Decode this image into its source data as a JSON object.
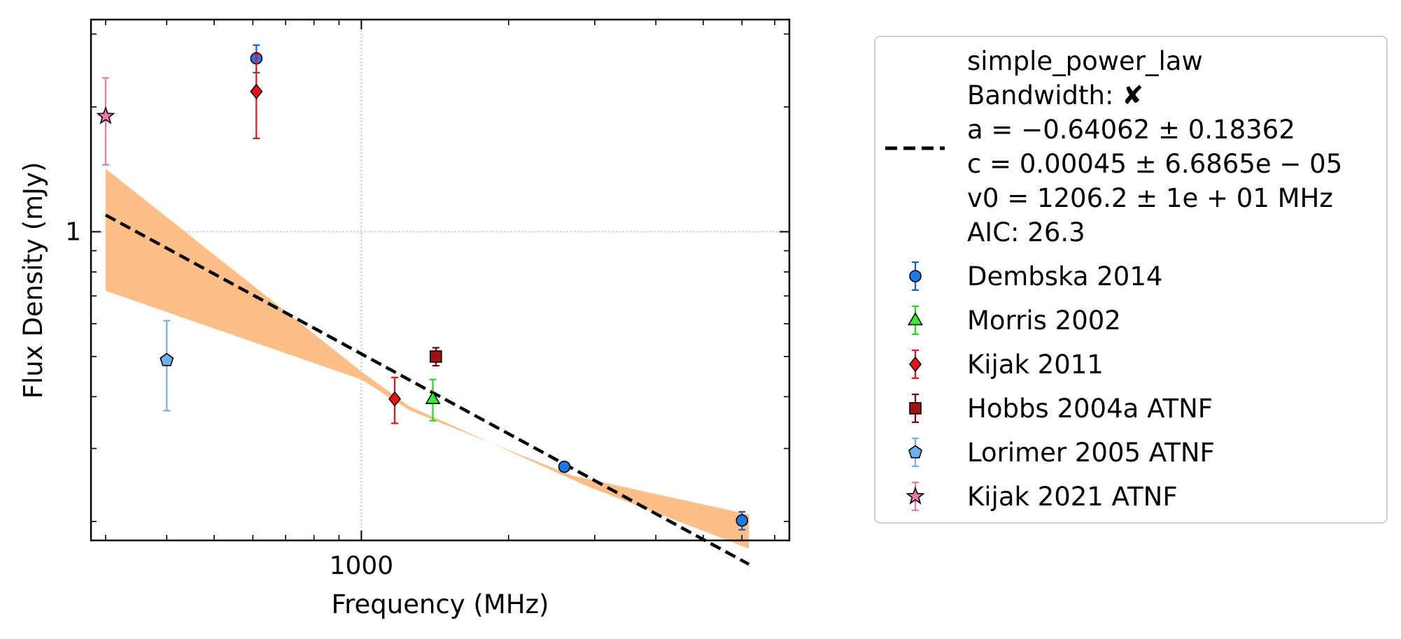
{
  "chart_data": {
    "type": "scatter",
    "xlabel": "Frequency (MHz)",
    "ylabel": "Flux Density (mJy)",
    "x_scale": "log",
    "y_scale": "log",
    "xlim": [
      280,
      7500
    ],
    "ylim": [
      0.18,
      3.25
    ],
    "x_ticks": [
      {
        "value": 1000,
        "label": "1000"
      }
    ],
    "y_ticks": [
      {
        "value": 1,
        "label": "1"
      }
    ],
    "x_minor_ticks": [
      300,
      400,
      500,
      600,
      700,
      800,
      900,
      2000,
      3000,
      4000,
      5000,
      6000,
      7000
    ],
    "y_minor_ticks": [
      0.2,
      0.3,
      0.4,
      0.5,
      0.6,
      0.7,
      0.8,
      0.9,
      2,
      3
    ],
    "grid": true,
    "legend_position": "outside-right",
    "fit": {
      "model": "simple_power_law",
      "a": -0.64062,
      "a_err": 0.18362,
      "c": 0.00045,
      "c_err": 6.6865e-05,
      "v0_mhz": 1206.2,
      "x_range": [
        300,
        6200
      ],
      "upper_band": [
        [
          300,
          1.42
        ],
        [
          1000,
          0.46
        ],
        [
          1250,
          0.38
        ],
        [
          2900,
          0.243
        ],
        [
          6200,
          0.172
        ]
      ],
      "lower_band": [
        [
          300,
          0.72
        ],
        [
          1000,
          0.44
        ],
        [
          1260,
          0.37
        ],
        [
          2700,
          0.258
        ],
        [
          6200,
          0.208
        ]
      ],
      "line_color": "#000000",
      "band_color": "#fdbf87"
    },
    "legend": {
      "fit_lines": [
        "simple_power_law",
        "Bandwidth: ✘",
        "a = −0.64062 ± 0.18362",
        "c = 0.00045 ± 6.6865e − 05",
        "v0 = 1206.2 ± 1e + 01 MHz",
        "AIC: 26.3"
      ]
    },
    "series": [
      {
        "name": "Dembska 2014",
        "marker": "circle",
        "color": "#1f77e4",
        "err_color": "#1060c8",
        "points": [
          {
            "x": 610,
            "y": 2.62,
            "yerr_lo": 0.2,
            "yerr_hi": 0.2
          },
          {
            "x": 2600,
            "y": 0.271,
            "yerr_lo": 0.003,
            "yerr_hi": 0.003
          },
          {
            "x": 6000,
            "y": 0.201,
            "yerr_lo": 0.01,
            "yerr_hi": 0.01
          }
        ]
      },
      {
        "name": "Morris 2002",
        "marker": "triangle",
        "color": "#33ee33",
        "err_color": "#22dd22",
        "points": [
          {
            "x": 1400,
            "y": 0.395,
            "yerr_lo": 0.045,
            "yerr_hi": 0.045
          }
        ]
      },
      {
        "name": "Kijak 2011",
        "marker": "diamond",
        "color": "#ee1111",
        "err_color": "#ee1111",
        "points": [
          {
            "x": 610,
            "y": 2.18,
            "yerr_lo": 0.5,
            "yerr_hi": 0.5
          },
          {
            "x": 1170,
            "y": 0.395,
            "yerr_lo": 0.05,
            "yerr_hi": 0.05
          }
        ]
      },
      {
        "name": "Hobbs 2004a ATNF",
        "marker": "square",
        "color": "#a01010",
        "err_color": "#7a0000",
        "points": [
          {
            "x": 1420,
            "y": 0.5,
            "yerr_lo": 0.025,
            "yerr_hi": 0.025
          }
        ]
      },
      {
        "name": "Lorimer 2005 ATNF",
        "marker": "pentagon",
        "color": "#6fb0ee",
        "err_color": "#6fb0ee",
        "points": [
          {
            "x": 400,
            "y": 0.49,
            "yerr_lo": 0.12,
            "yerr_hi": 0.12
          }
        ]
      },
      {
        "name": "Kijak 2021 ATNF",
        "marker": "star",
        "color": "#ee77aa",
        "err_color": "#ee77aa",
        "points": [
          {
            "x": 300,
            "y": 1.9,
            "yerr_lo": 0.45,
            "yerr_hi": 0.45
          }
        ]
      }
    ]
  }
}
